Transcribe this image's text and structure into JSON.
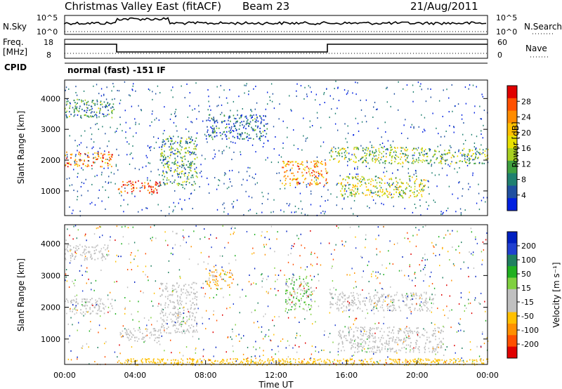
{
  "header": {
    "station": "Christmas Valley East (fitACF)",
    "beam": "Beam 23",
    "date": "21/Aug/2011"
  },
  "summary_panel": {
    "nsky_label": "N.Sky",
    "nsky_ticks": [
      "10^5",
      "10^0"
    ],
    "nsearch_label": "N.Search",
    "nsearch_ticks": [
      "10^5",
      "10^0"
    ],
    "freq_label": "Freq.",
    "freq_unit": "[MHz]",
    "freq_ticks": [
      "18",
      "8"
    ],
    "nave_label": "Nave",
    "nave_ticks": [
      "60",
      "0"
    ],
    "cpid_label": "CPID",
    "cpid_text": "normal (fast) -151 IF"
  },
  "chart_data": [
    {
      "type": "heatmap",
      "name": "power",
      "ylabel": "Slant Range [km]",
      "ylim": [
        200,
        4600
      ],
      "yticks": [
        1000,
        2000,
        3000,
        4000
      ],
      "colorbar": {
        "label": "Power [dB]",
        "ticks": [
          "28",
          "24",
          "20",
          "16",
          "12",
          "8",
          "4"
        ],
        "colors": [
          "#e00000",
          "#ff5000",
          "#ff8c00",
          "#ffc000",
          "#e8e000",
          "#a8d020",
          "#40a040",
          "#208070",
          "#2050a0",
          "#0020e0"
        ]
      },
      "bands": [
        {
          "t": [
            0.0,
            2.7
          ],
          "r": [
            1800,
            2300
          ],
          "intensity": 0.78
        },
        {
          "t": [
            3.0,
            5.4
          ],
          "r": [
            950,
            1350
          ],
          "intensity": 0.85
        },
        {
          "t": [
            5.4,
            7.5
          ],
          "r": [
            1200,
            2800
          ],
          "intensity": 0.35
        },
        {
          "t": [
            8.0,
            11.5
          ],
          "r": [
            2700,
            3500
          ],
          "intensity": 0.2
        },
        {
          "t": [
            12.3,
            14.9
          ],
          "r": [
            1200,
            2000
          ],
          "intensity": 0.7
        },
        {
          "t": [
            15.0,
            20.5
          ],
          "r": [
            1900,
            2450
          ],
          "intensity": 0.45
        },
        {
          "t": [
            15.5,
            20.5
          ],
          "r": [
            800,
            1500
          ],
          "intensity": 0.5
        },
        {
          "t": [
            20.5,
            24.0
          ],
          "r": [
            1900,
            2400
          ],
          "intensity": 0.4
        },
        {
          "t": [
            0.0,
            2.8
          ],
          "r": [
            3400,
            4000
          ],
          "intensity": 0.3
        }
      ]
    },
    {
      "type": "heatmap",
      "name": "velocity",
      "ylabel": "Slant Range [km]",
      "xlabel": "Time UT",
      "ylim": [
        200,
        4600
      ],
      "yticks": [
        1000,
        2000,
        3000,
        4000
      ],
      "xticks": [
        "00:00",
        "04:00",
        "08:00",
        "12:00",
        "16:00",
        "20:00",
        "00:00"
      ],
      "xlim": [
        0,
        24
      ],
      "colorbar": {
        "label": "Velocity [m s⁻¹]",
        "ticks": [
          "200",
          "100",
          "50",
          "15",
          "-15",
          "-50",
          "-100",
          "-200"
        ],
        "colors": [
          "#0020c0",
          "#2040d0",
          "#208060",
          "#20b020",
          "#80d040",
          "#c0c0c0",
          "#c0c0c0",
          "#ffc000",
          "#ff9000",
          "#ff5000",
          "#e00000"
        ]
      },
      "bands": [
        {
          "t": [
            0.0,
            2.7
          ],
          "r": [
            1800,
            2300
          ],
          "class": "ground"
        },
        {
          "t": [
            3.0,
            5.4
          ],
          "r": [
            950,
            1350
          ],
          "class": "ground"
        },
        {
          "t": [
            5.4,
            7.5
          ],
          "r": [
            1200,
            2800
          ],
          "class": "ground"
        },
        {
          "t": [
            8.0,
            9.5
          ],
          "r": [
            2600,
            3200
          ],
          "class": "orange"
        },
        {
          "t": [
            12.5,
            14.0
          ],
          "r": [
            1900,
            3000
          ],
          "class": "green"
        },
        {
          "t": [
            15.0,
            21.0
          ],
          "r": [
            1900,
            2500
          ],
          "class": "ground"
        },
        {
          "t": [
            15.5,
            21.5
          ],
          "r": [
            600,
            1400
          ],
          "class": "ground"
        },
        {
          "t": [
            0.0,
            2.5
          ],
          "r": [
            3500,
            4000
          ],
          "class": "ground"
        }
      ]
    }
  ]
}
